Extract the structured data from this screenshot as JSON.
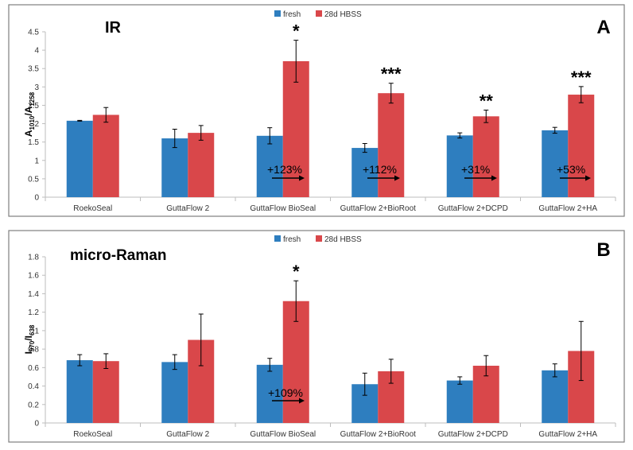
{
  "colors": {
    "fresh": "#2e7ebf",
    "hbss": "#d9474a",
    "axis": "#bdbdbd",
    "border": "#7f7f7f"
  },
  "chart_data": [
    {
      "type": "bar",
      "title": "IR",
      "panel_label": "A",
      "ylabel_main": "A",
      "ylabel_sub1": "1010",
      "ylabel_sep": "/A",
      "ylabel_sub2": "1258",
      "ylim": [
        0,
        4.5
      ],
      "yticks": [
        "0",
        "0.5",
        "1",
        "1.5",
        "2",
        "2.5",
        "3",
        "3.5",
        "4",
        "4.5"
      ],
      "legend": [
        "fresh",
        "28d HBSS"
      ],
      "categories": [
        "RoekoSeal",
        "GuttaFlow 2",
        "GuttaFlow BioSeal",
        "GuttaFlow 2+BioRoot",
        "GuttaFlow 2+DCPD",
        "GuttaFlow 2+HA"
      ],
      "series": [
        {
          "name": "fresh",
          "values": [
            2.08,
            1.6,
            1.67,
            1.34,
            1.68,
            1.82
          ],
          "errors": [
            0.01,
            0.25,
            0.22,
            0.12,
            0.07,
            0.08
          ]
        },
        {
          "name": "28d HBSS",
          "values": [
            2.24,
            1.75,
            3.7,
            2.83,
            2.2,
            2.79
          ],
          "errors": [
            0.2,
            0.2,
            0.57,
            0.27,
            0.17,
            0.22
          ]
        }
      ],
      "significance": [
        "",
        "",
        "*",
        "***",
        "**",
        "***"
      ],
      "change_labels": [
        "",
        "",
        "+123%",
        "+112%",
        "+31%",
        "+53%"
      ]
    },
    {
      "type": "bar",
      "title": "micro-Raman",
      "panel_label": "B",
      "ylabel_main": "I",
      "ylabel_sub1": "970",
      "ylabel_sep": "/I",
      "ylabel_sub2": "638",
      "ylim": [
        0,
        1.8
      ],
      "yticks": [
        "0",
        "0.2",
        "0.4",
        "0.6",
        "0.8",
        "1",
        "1.2",
        "1.4",
        "1.6",
        "1.8"
      ],
      "legend": [
        "fresh",
        "28d HBSS"
      ],
      "categories": [
        "RoekoSeal",
        "GuttaFlow 2",
        "GuttaFlow BioSeal",
        "GuttaFlow 2+BioRoot",
        "GuttaFlow 2+DCPD",
        "GuttaFlow 2+HA"
      ],
      "series": [
        {
          "name": "fresh",
          "values": [
            0.68,
            0.66,
            0.63,
            0.42,
            0.46,
            0.57
          ],
          "errors": [
            0.06,
            0.08,
            0.07,
            0.12,
            0.04,
            0.07
          ]
        },
        {
          "name": "28d HBSS",
          "values": [
            0.67,
            0.9,
            1.32,
            0.56,
            0.62,
            0.78
          ],
          "errors": [
            0.08,
            0.28,
            0.22,
            0.13,
            0.11,
            0.32
          ]
        }
      ],
      "significance": [
        "",
        "",
        "*",
        "",
        "",
        ""
      ],
      "change_labels": [
        "",
        "",
        "+109%",
        "",
        "",
        ""
      ]
    }
  ]
}
